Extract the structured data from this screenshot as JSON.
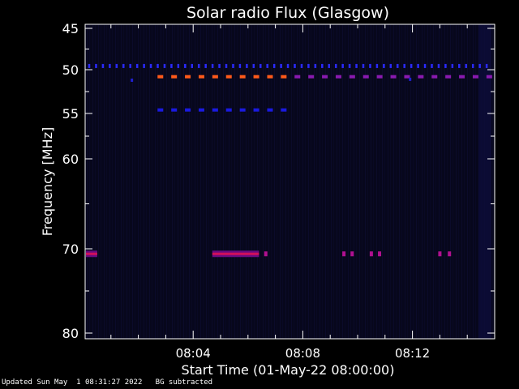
{
  "footer": {
    "updated": "Updated Sun May  1 08:31:27 2022",
    "note": "BG subtracted"
  },
  "chart_data": {
    "type": "heatmap",
    "title": "Solar radio Flux (Glasgow)",
    "xlabel": "Start Time (01-May-22 08:00:00)",
    "ylabel": "Frequency [MHz]",
    "x_unit": "minutes",
    "xlim": [
      0,
      15
    ],
    "ylim": [
      45,
      80
    ],
    "y_scale": "linear-in-index",
    "y_ticks": [
      45,
      50,
      55,
      60,
      70,
      80
    ],
    "x_ticks": [
      {
        "value": 4,
        "label": "08:04"
      },
      {
        "value": 8,
        "label": "08:08"
      },
      {
        "value": 12,
        "label": "08:12"
      }
    ],
    "background_color": "#050518",
    "features": [
      {
        "name": "dotted-49.5",
        "freq": 49.6,
        "x_start": 0.2,
        "x_end": 14.8,
        "style": "dots",
        "color": "#2a2aff"
      },
      {
        "name": "dashed-51-orange",
        "freq": 50.8,
        "x_start": 2.7,
        "x_end": 7.5,
        "style": "dashes",
        "color": "#ff5a1a"
      },
      {
        "name": "dashed-51-purple",
        "freq": 50.8,
        "x_start": 7.7,
        "x_end": 14.9,
        "style": "dashes",
        "color": "#8a1ab0"
      },
      {
        "name": "dashed-54.5",
        "freq": 54.6,
        "x_start": 2.7,
        "x_end": 7.5,
        "style": "dashes",
        "color": "#1a1ae0"
      },
      {
        "name": "band-70.5-a",
        "freq": 70.6,
        "x_start": 0.0,
        "x_end": 0.5,
        "style": "solid",
        "color": "#d0105a"
      },
      {
        "name": "band-70.5-b",
        "freq": 70.6,
        "x_start": 4.7,
        "x_end": 6.4,
        "style": "solid",
        "color": "#d0105a"
      },
      {
        "name": "spots-70.5",
        "freq": 70.6,
        "style": "spots",
        "color": "#b01090",
        "x_values": [
          6.65,
          9.5,
          9.8,
          10.5,
          10.8,
          13.0,
          13.35
        ]
      }
    ]
  }
}
